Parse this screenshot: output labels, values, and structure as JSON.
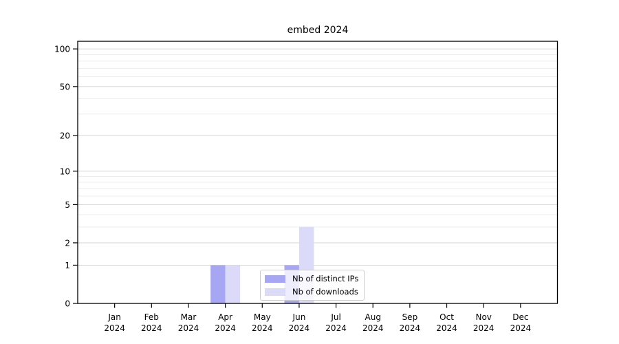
{
  "chart_data": {
    "type": "bar",
    "title": "embed 2024",
    "categories": [
      "Jan",
      "Feb",
      "Mar",
      "Apr",
      "May",
      "Jun",
      "Jul",
      "Aug",
      "Sep",
      "Oct",
      "Nov",
      "Dec"
    ],
    "category_year": "2024",
    "series": [
      {
        "name": "Nb of distinct IPs",
        "color": "#a6a6f3",
        "values": [
          0,
          0,
          0,
          1,
          0,
          1,
          0,
          0,
          0,
          0,
          0,
          0
        ]
      },
      {
        "name": "Nb of downloads",
        "color": "#dbdbf9",
        "values": [
          0,
          0,
          0,
          1,
          0,
          3,
          0,
          0,
          0,
          0,
          0,
          0
        ]
      }
    ],
    "yscale": "log1p",
    "ylim": [
      0,
      115
    ],
    "y_ticks": [
      0,
      1,
      2,
      5,
      10,
      20,
      50,
      100
    ],
    "y_minor_gridlines": [
      3,
      4,
      6,
      7,
      8,
      9,
      30,
      40,
      60,
      70,
      80,
      90
    ],
    "grid": "horizontal",
    "legend_position": "lower-center-inside",
    "colors": {
      "axis": "#000000",
      "major_grid": "#d6d6d6",
      "minor_grid": "#ededed",
      "background": "#ffffff"
    }
  }
}
